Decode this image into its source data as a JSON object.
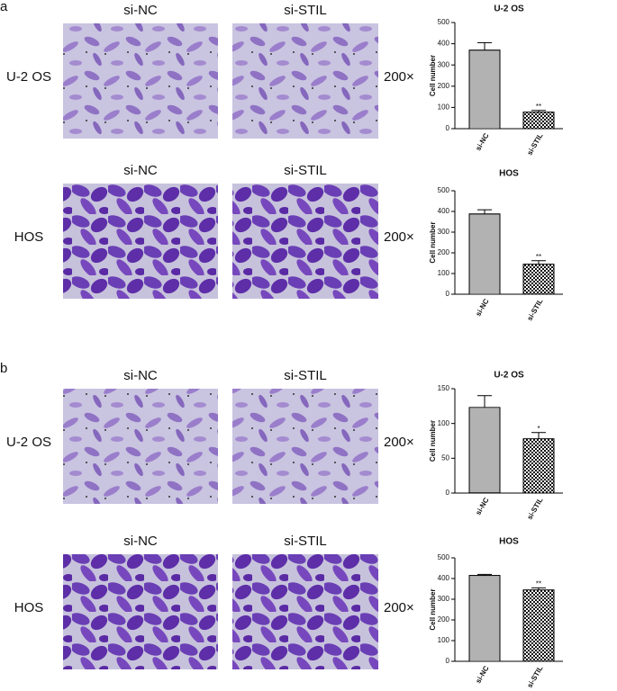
{
  "panels": [
    {
      "label": "a",
      "rows": [
        {
          "row_label": "U-2 OS",
          "columns": [
            "si-NC",
            "si-STIL"
          ],
          "magnification": "200×"
        },
        {
          "row_label": "HOS",
          "columns": [
            "si-NC",
            "si-STIL"
          ],
          "magnification": "200×"
        }
      ]
    },
    {
      "label": "b",
      "rows": [
        {
          "row_label": "U-2 OS",
          "columns": [
            "si-NC",
            "si-STIL"
          ],
          "magnification": "200×"
        },
        {
          "row_label": "HOS",
          "columns": [
            "si-NC",
            "si-STIL"
          ],
          "magnification": "200×"
        }
      ]
    }
  ],
  "chart_data": [
    {
      "type": "bar",
      "title": "U-2 OS",
      "y_label": "Cell number",
      "categories": [
        "si-NC",
        "si-STIL"
      ],
      "values": [
        370,
        78
      ],
      "errors": [
        35,
        8
      ],
      "annotations": [
        null,
        "**"
      ],
      "ylim": [
        0,
        500
      ],
      "yticks": [
        0,
        100,
        200,
        300,
        400,
        500
      ]
    },
    {
      "type": "bar",
      "title": "HOS",
      "y_label": "Cell number",
      "categories": [
        "si-NC",
        "si-STIL"
      ],
      "values": [
        388,
        145
      ],
      "errors": [
        20,
        17
      ],
      "annotations": [
        null,
        "**"
      ],
      "ylim": [
        0,
        500
      ],
      "yticks": [
        0,
        100,
        200,
        300,
        400,
        500
      ]
    },
    {
      "type": "bar",
      "title": "U-2 OS",
      "y_label": "Cell number",
      "categories": [
        "si-NC",
        "si-STIL"
      ],
      "values": [
        123,
        78
      ],
      "errors": [
        17,
        9
      ],
      "annotations": [
        null,
        "*"
      ],
      "ylim": [
        0,
        150
      ],
      "yticks": [
        0,
        50,
        100,
        150
      ]
    },
    {
      "type": "bar",
      "title": "HOS",
      "y_label": "Cell number",
      "categories": [
        "si-NC",
        "si-STIL"
      ],
      "values": [
        415,
        345
      ],
      "errors": [
        5,
        10
      ],
      "annotations": [
        null,
        "**"
      ],
      "ylim": [
        0,
        500
      ],
      "yticks": [
        0,
        100,
        200,
        300,
        400,
        500
      ]
    }
  ]
}
